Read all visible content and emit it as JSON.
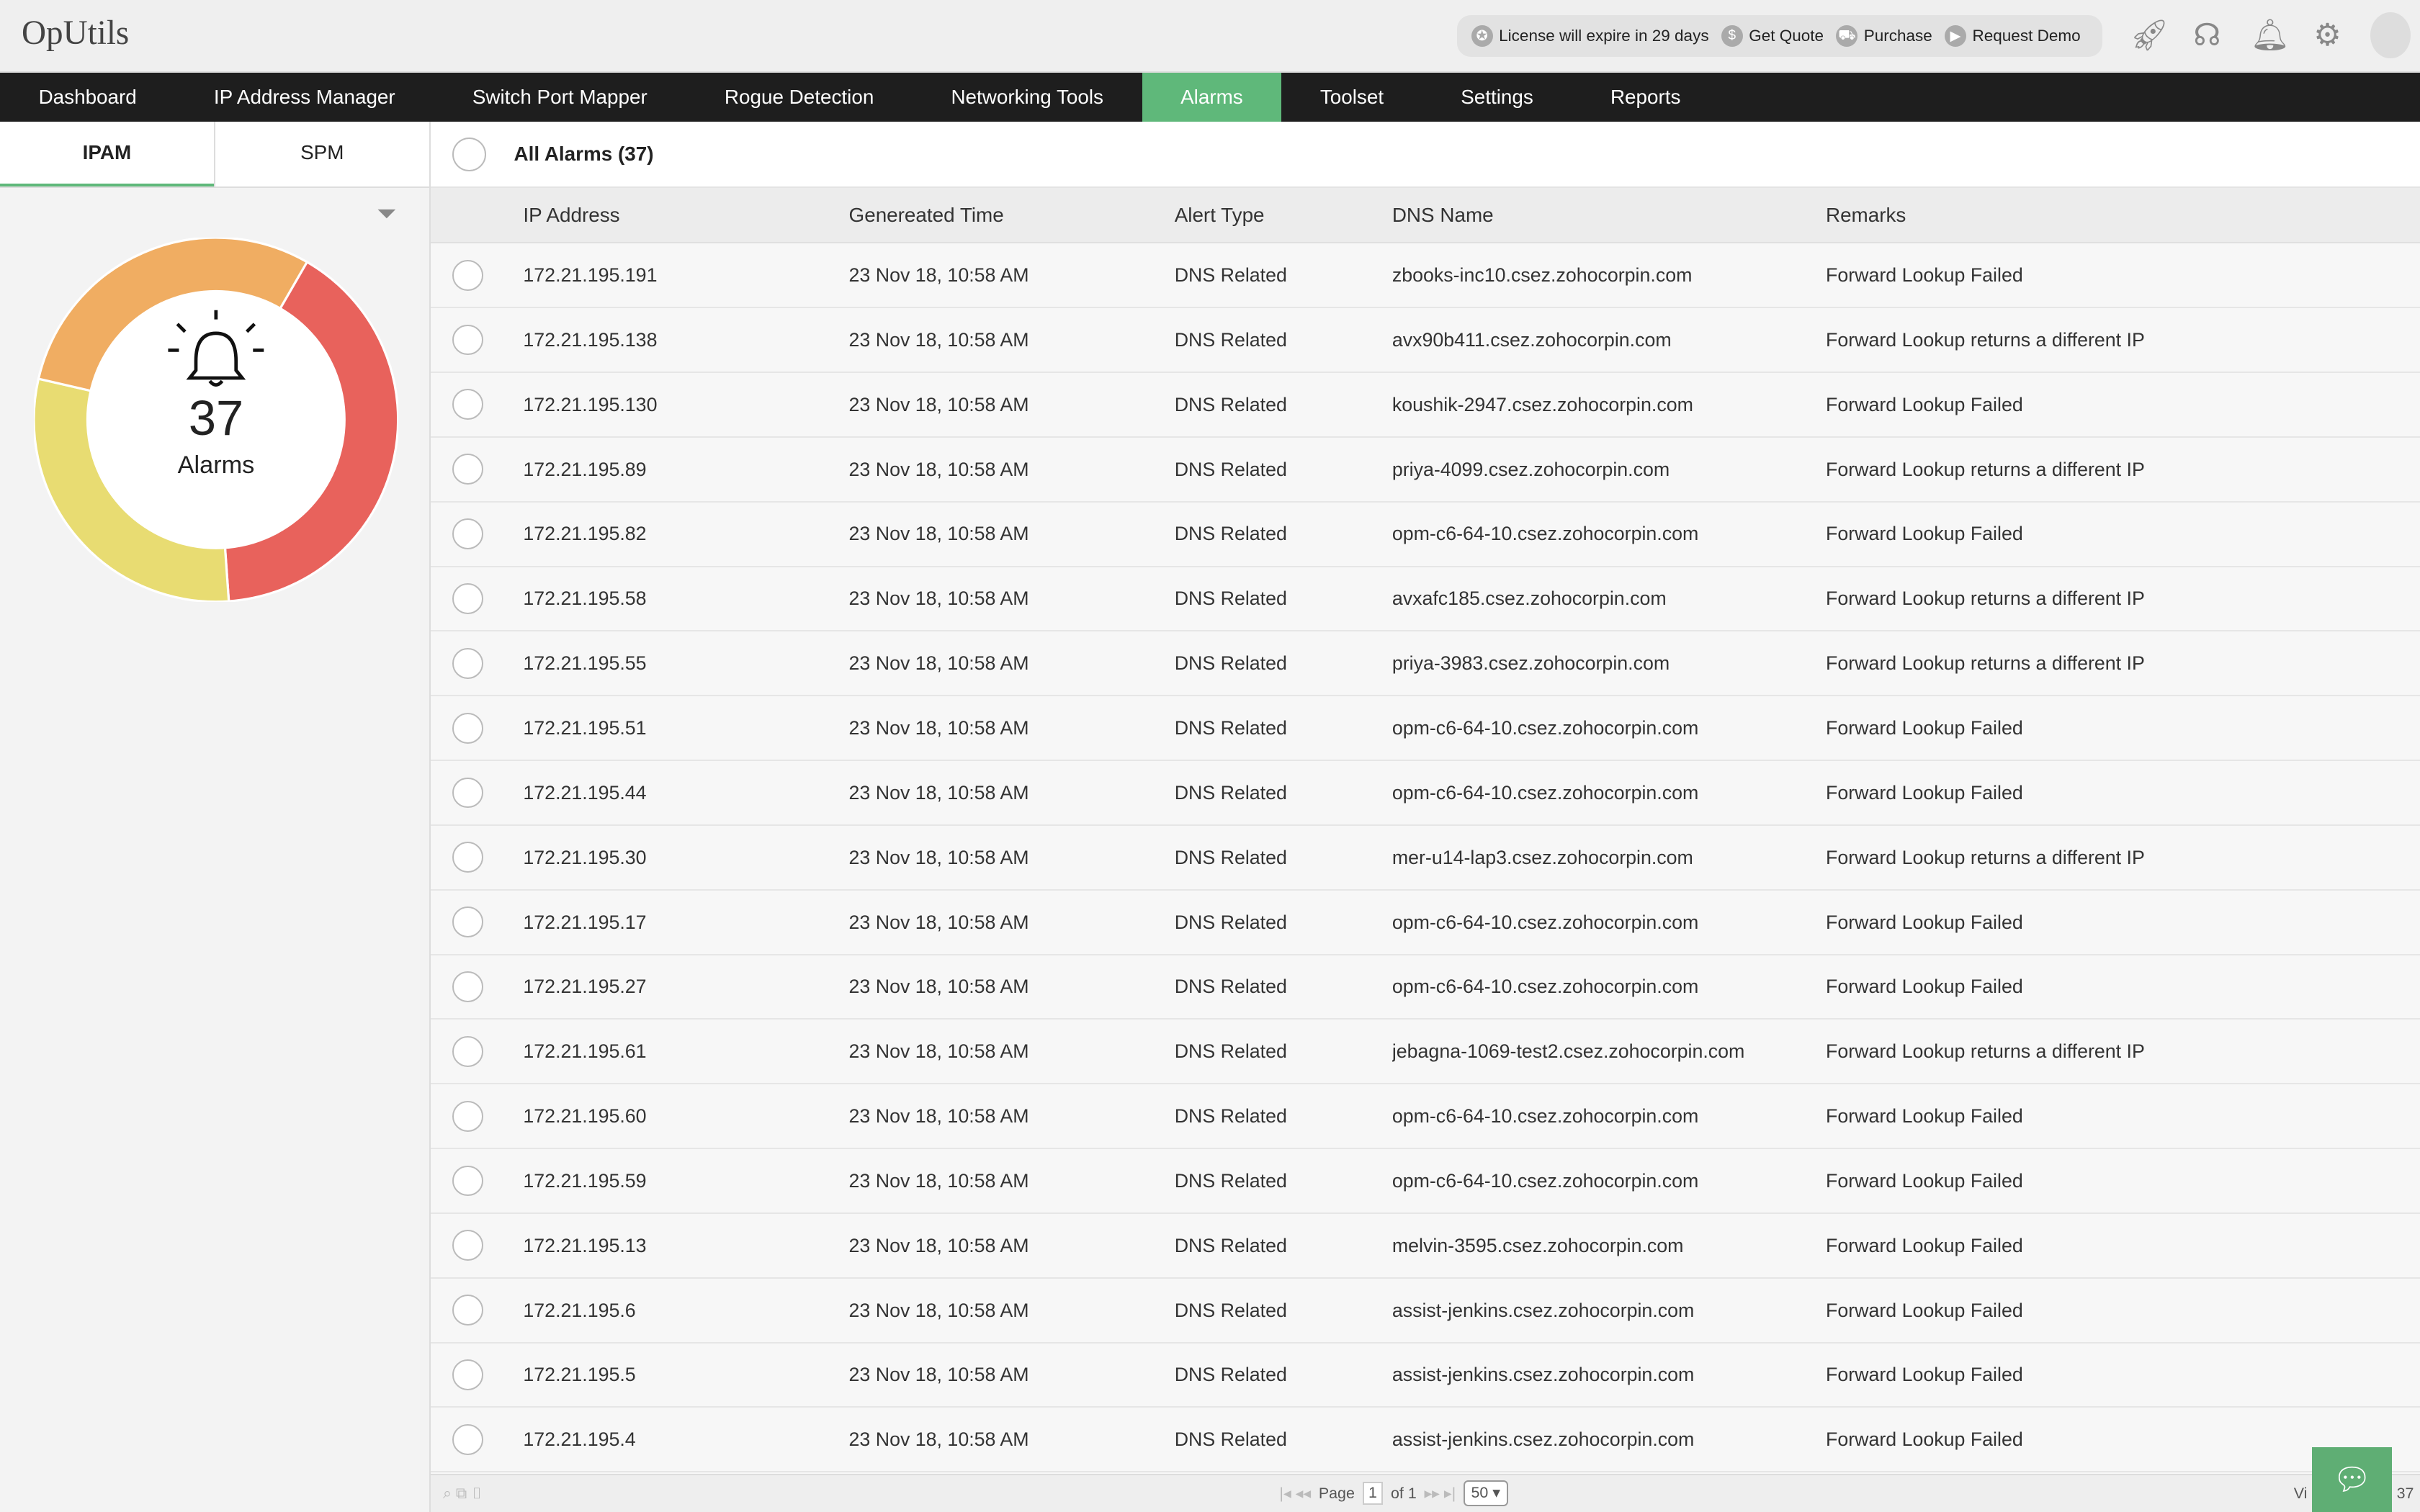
{
  "app": {
    "title": "OpUtils"
  },
  "header": {
    "license": "License will expire in 29 days",
    "get_quote": "Get Quote",
    "purchase": "Purchase",
    "request_demo": "Request Demo"
  },
  "nav": [
    "Dashboard",
    "IP Address Manager",
    "Switch Port Mapper",
    "Rogue Detection",
    "Networking Tools",
    "Alarms",
    "Toolset",
    "Settings",
    "Reports"
  ],
  "nav_active": "Alarms",
  "sidebar": {
    "tabs": [
      "IPAM",
      "SPM"
    ],
    "active_tab": "IPAM",
    "donut": {
      "count": "37",
      "label": "Alarms",
      "segments": [
        {
          "value": 15,
          "color": "#e8625c"
        },
        {
          "value": 11,
          "color": "#e8dc72"
        },
        {
          "value": 11,
          "color": "#f0ad62"
        }
      ]
    }
  },
  "main": {
    "title": "All Alarms (37)",
    "columns": [
      "IP Address",
      "Genereated Time",
      "Alert Type",
      "DNS Name",
      "Remarks"
    ],
    "rows": [
      [
        "172.21.195.191",
        "23 Nov 18, 10:58 AM",
        "DNS Related",
        "zbooks-inc10.csez.zohocorpin.com",
        "Forward Lookup Failed"
      ],
      [
        "172.21.195.138",
        "23 Nov 18, 10:58 AM",
        "DNS Related",
        "avx90b411.csez.zohocorpin.com",
        "Forward Lookup returns a different IP"
      ],
      [
        "172.21.195.130",
        "23 Nov 18, 10:58 AM",
        "DNS Related",
        "koushik-2947.csez.zohocorpin.com",
        "Forward Lookup Failed"
      ],
      [
        "172.21.195.89",
        "23 Nov 18, 10:58 AM",
        "DNS Related",
        "priya-4099.csez.zohocorpin.com",
        "Forward Lookup returns a different IP"
      ],
      [
        "172.21.195.82",
        "23 Nov 18, 10:58 AM",
        "DNS Related",
        "opm-c6-64-10.csez.zohocorpin.com",
        "Forward Lookup Failed"
      ],
      [
        "172.21.195.58",
        "23 Nov 18, 10:58 AM",
        "DNS Related",
        "avxafc185.csez.zohocorpin.com",
        "Forward Lookup returns a different IP"
      ],
      [
        "172.21.195.55",
        "23 Nov 18, 10:58 AM",
        "DNS Related",
        "priya-3983.csez.zohocorpin.com",
        "Forward Lookup returns a different IP"
      ],
      [
        "172.21.195.51",
        "23 Nov 18, 10:58 AM",
        "DNS Related",
        "opm-c6-64-10.csez.zohocorpin.com",
        "Forward Lookup Failed"
      ],
      [
        "172.21.195.44",
        "23 Nov 18, 10:58 AM",
        "DNS Related",
        "opm-c6-64-10.csez.zohocorpin.com",
        "Forward Lookup Failed"
      ],
      [
        "172.21.195.30",
        "23 Nov 18, 10:58 AM",
        "DNS Related",
        "mer-u14-lap3.csez.zohocorpin.com",
        "Forward Lookup returns a different IP"
      ],
      [
        "172.21.195.17",
        "23 Nov 18, 10:58 AM",
        "DNS Related",
        "opm-c6-64-10.csez.zohocorpin.com",
        "Forward Lookup Failed"
      ],
      [
        "172.21.195.27",
        "23 Nov 18, 10:58 AM",
        "DNS Related",
        "opm-c6-64-10.csez.zohocorpin.com",
        "Forward Lookup Failed"
      ],
      [
        "172.21.195.61",
        "23 Nov 18, 10:58 AM",
        "DNS Related",
        "jebagna-1069-test2.csez.zohocorpin.com",
        "Forward Lookup returns a different IP"
      ],
      [
        "172.21.195.60",
        "23 Nov 18, 10:58 AM",
        "DNS Related",
        "opm-c6-64-10.csez.zohocorpin.com",
        "Forward Lookup Failed"
      ],
      [
        "172.21.195.59",
        "23 Nov 18, 10:58 AM",
        "DNS Related",
        "opm-c6-64-10.csez.zohocorpin.com",
        "Forward Lookup Failed"
      ],
      [
        "172.21.195.13",
        "23 Nov 18, 10:58 AM",
        "DNS Related",
        "melvin-3595.csez.zohocorpin.com",
        "Forward Lookup Failed"
      ],
      [
        "172.21.195.6",
        "23 Nov 18, 10:58 AM",
        "DNS Related",
        "assist-jenkins.csez.zohocorpin.com",
        "Forward Lookup Failed"
      ],
      [
        "172.21.195.5",
        "23 Nov 18, 10:58 AM",
        "DNS Related",
        "assist-jenkins.csez.zohocorpin.com",
        "Forward Lookup Failed"
      ],
      [
        "172.21.195.4",
        "23 Nov 18, 10:58 AM",
        "DNS Related",
        "assist-jenkins.csez.zohocorpin.com",
        "Forward Lookup Failed"
      ]
    ]
  },
  "footer": {
    "page_label": "Page",
    "page": "1",
    "of": "of 1",
    "page_size": "50",
    "view": "Vi",
    "total": "37"
  }
}
